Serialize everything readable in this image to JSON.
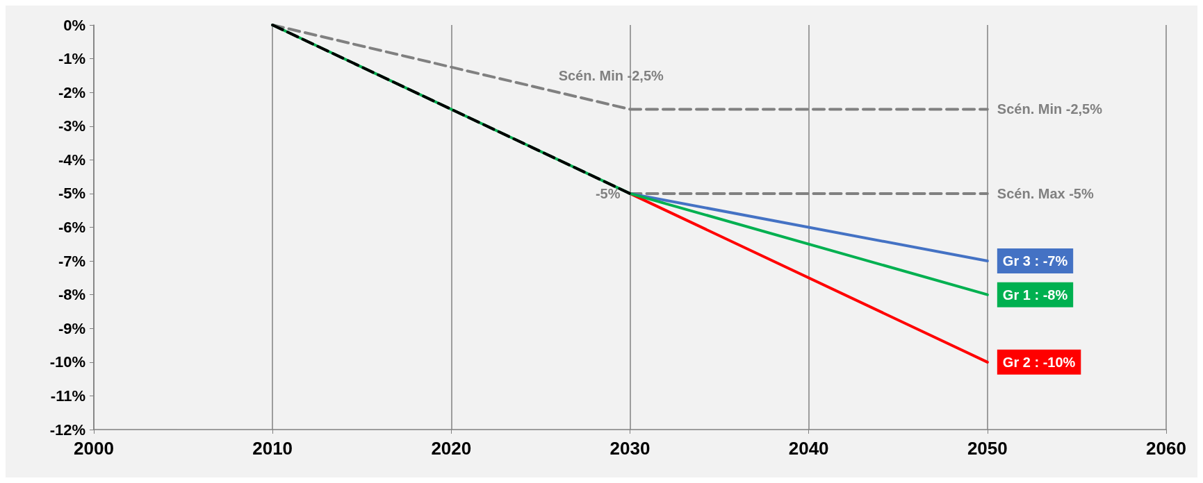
{
  "chart_data": {
    "type": "line",
    "xlim": [
      2000,
      2060
    ],
    "xticks": [
      2000,
      2010,
      2020,
      2030,
      2040,
      2050,
      2060
    ],
    "ylim": [
      -12,
      0
    ],
    "yticks": [
      {
        "value": 0,
        "label": "0%"
      },
      {
        "value": -1,
        "label": "-1%"
      },
      {
        "value": -2,
        "label": "-2%"
      },
      {
        "value": -3,
        "label": "-3%"
      },
      {
        "value": -4,
        "label": "-4%"
      },
      {
        "value": -5,
        "label": "-5%"
      },
      {
        "value": -6,
        "label": "-6%"
      },
      {
        "value": -7,
        "label": "-7%"
      },
      {
        "value": -8,
        "label": "-8%"
      },
      {
        "value": -9,
        "label": "-9%"
      },
      {
        "value": -10,
        "label": "-10%"
      },
      {
        "value": -11,
        "label": "-11%"
      },
      {
        "value": -12,
        "label": "-12%"
      }
    ],
    "grid": "x",
    "legend": false,
    "marker": "none",
    "series": [
      {
        "name": "Scén. Min -2,5%",
        "color": "#808080",
        "line_style": "dashed",
        "x": [
          2010,
          2030,
          2050
        ],
        "values": [
          0,
          -2.5,
          -2.5
        ]
      },
      {
        "name": "Scén. Max -5%",
        "color": "#808080",
        "line_style": "dashed",
        "x": [
          2030,
          2050
        ],
        "values": [
          -5,
          -5
        ]
      },
      {
        "name": "Gr 3 : -7%",
        "color": "#4472c4",
        "line_style": "solid",
        "x": [
          2030,
          2050
        ],
        "values": [
          -5,
          -7
        ]
      },
      {
        "name": "Gr 2 : -10%",
        "color": "#ff0000",
        "line_style": "solid",
        "x": [
          2030,
          2050
        ],
        "values": [
          -5,
          -10
        ]
      },
      {
        "name": "Gr 1 : -8%",
        "color": "#00b050",
        "line_style": "solid",
        "x": [
          2010,
          2030,
          2050
        ],
        "values": [
          0,
          -5,
          -8
        ]
      },
      {
        "color": "#000000",
        "line_style": "dashed",
        "x": [
          2010,
          2030
        ],
        "values": [
          0,
          -5
        ]
      }
    ],
    "annotations": [
      {
        "text": "Scén. Min -2,5%",
        "x": 2026,
        "y": -2
      },
      {
        "text": "-5%",
        "x": 2030,
        "y": -5
      }
    ]
  }
}
